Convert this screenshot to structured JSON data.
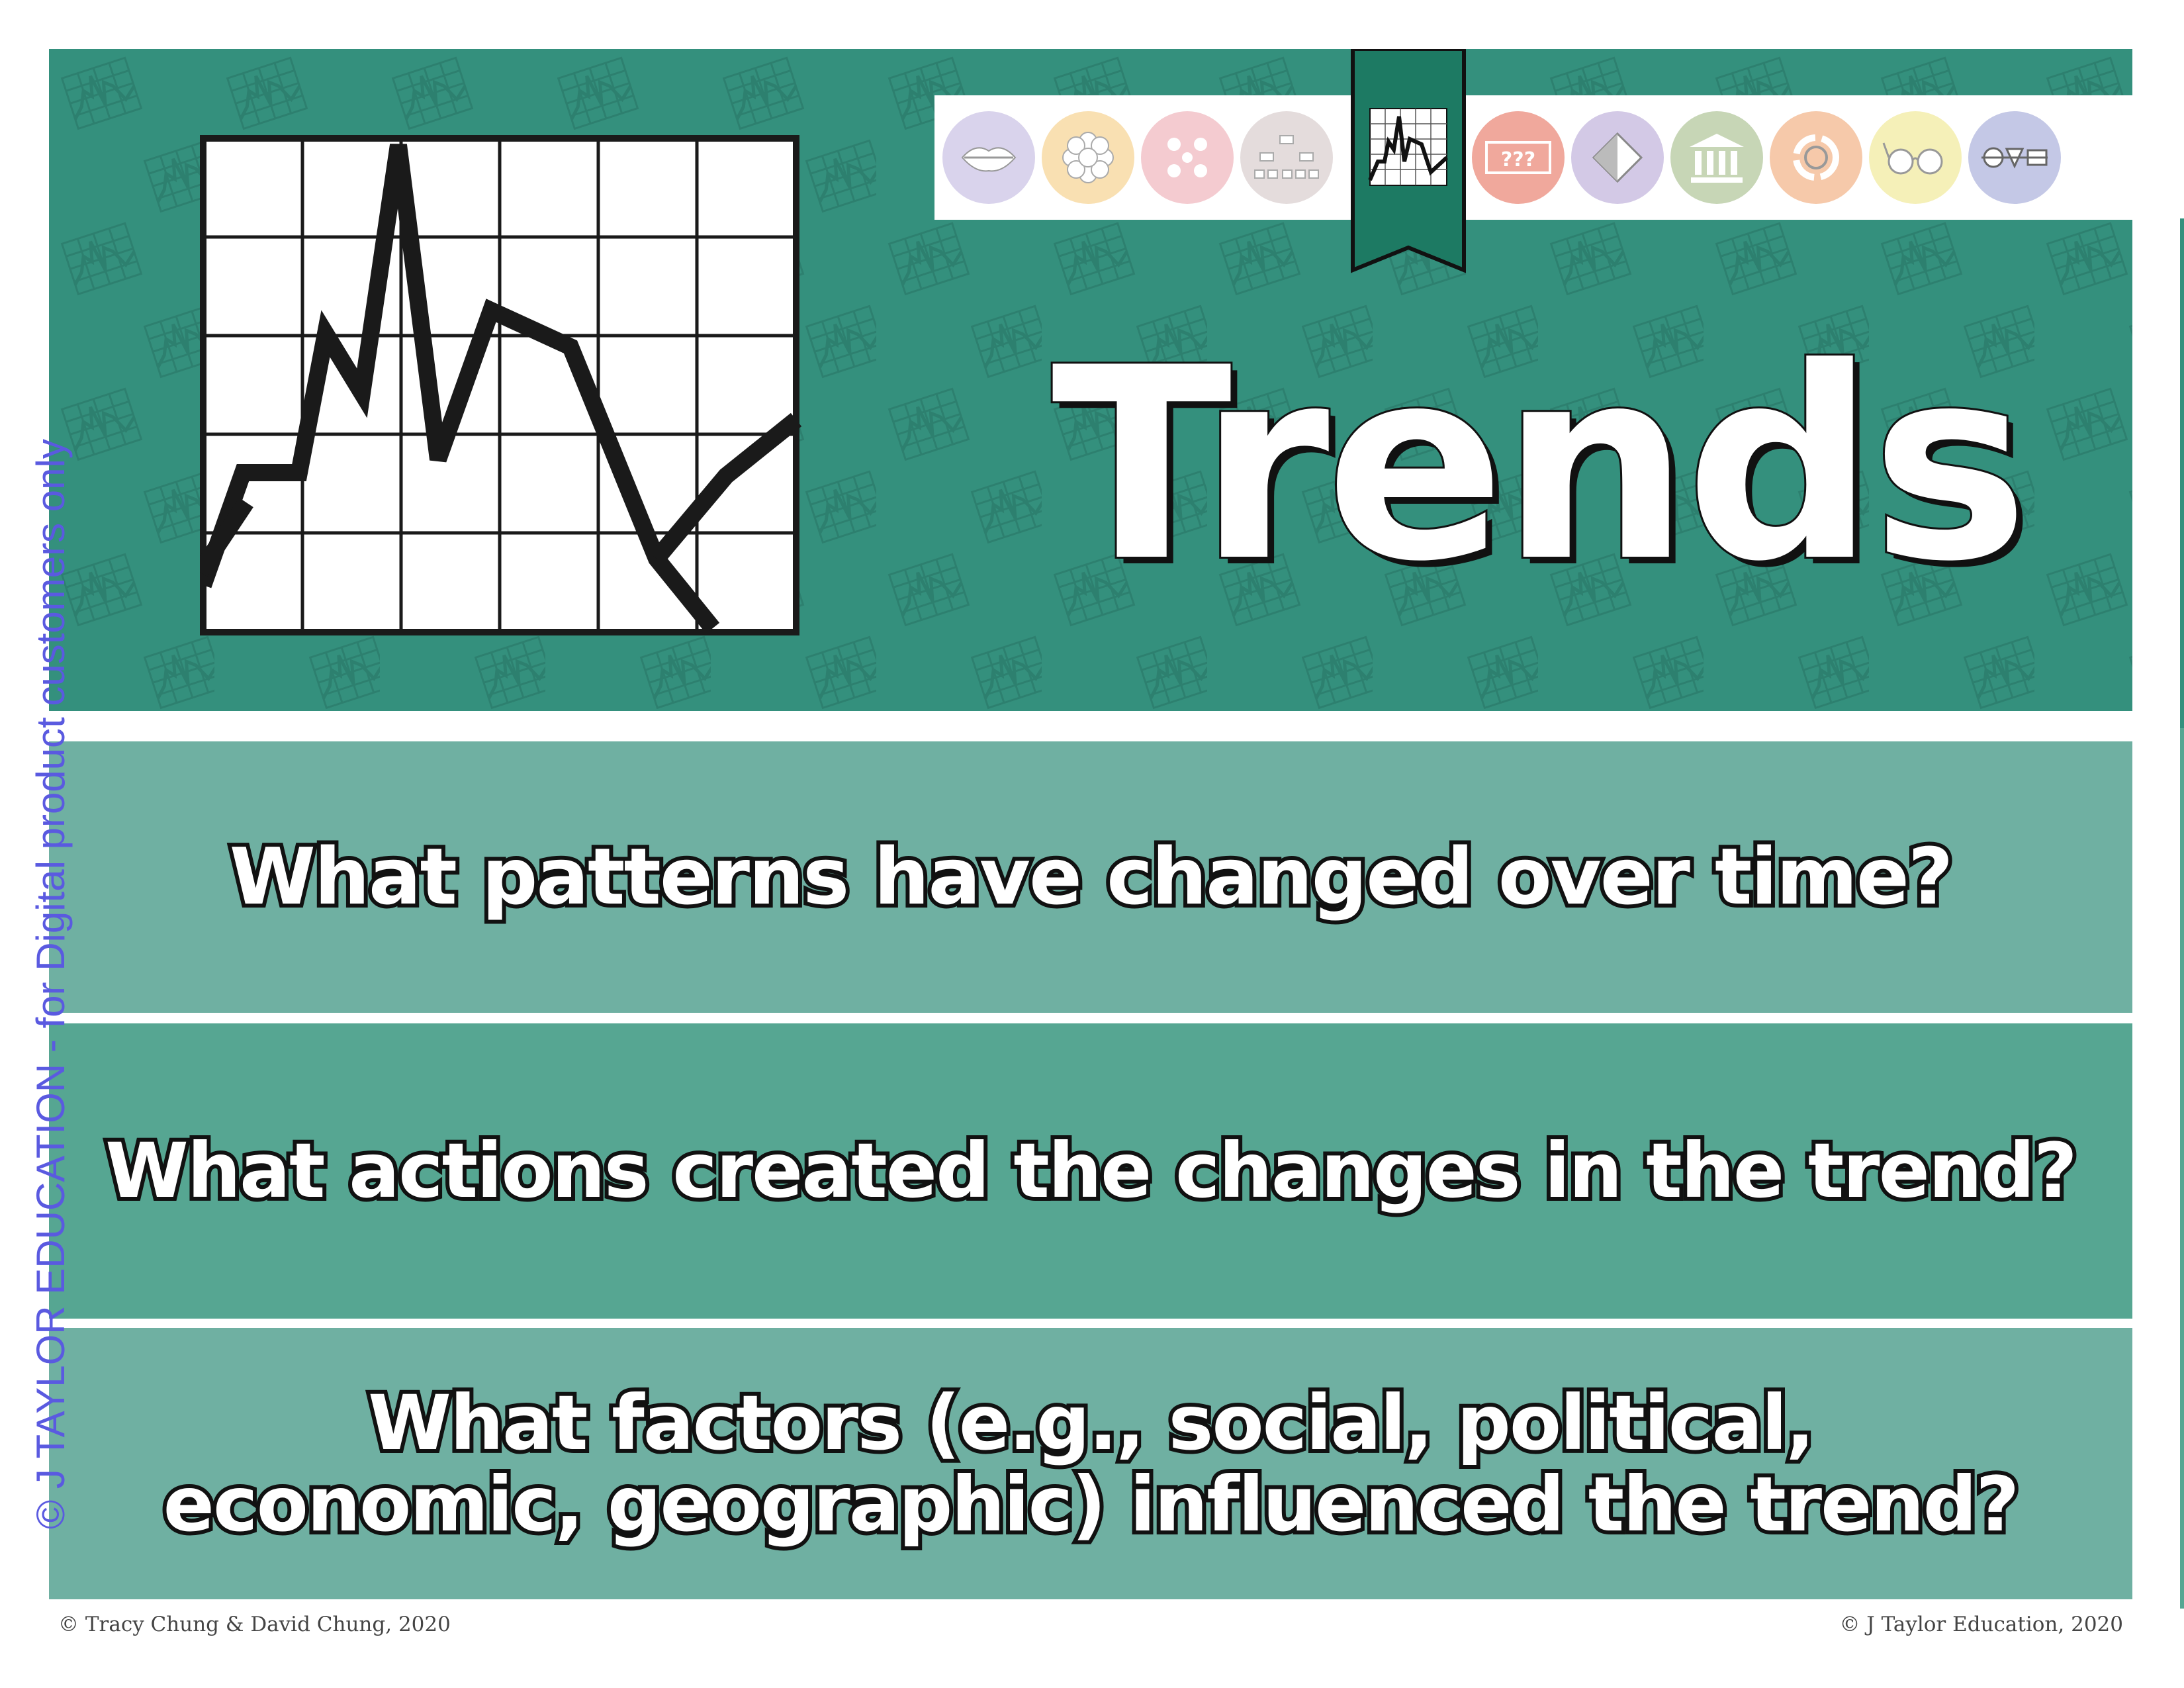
{
  "header": {
    "title": "Trends",
    "background_color": "#34907d",
    "icons": [
      {
        "name": "lips-icon",
        "color": "#d9d3ec"
      },
      {
        "name": "flower-icon",
        "color": "#f9e0b2"
      },
      {
        "name": "network-icon",
        "color": "#f4cbd0"
      },
      {
        "name": "hierarchy-icon",
        "color": "#e4dcdc"
      },
      {
        "name": "trend-graph-icon",
        "color": "#ffffff",
        "selected": true
      },
      {
        "name": "question-marks-icon",
        "color": "#f0a89c"
      },
      {
        "name": "diamond-icon",
        "color": "#d3c9e6"
      },
      {
        "name": "institution-icon",
        "color": "#c7d6b6"
      },
      {
        "name": "cycle-icon",
        "color": "#f6c9aa"
      },
      {
        "name": "glasses-icon",
        "color": "#f5f0b8"
      },
      {
        "name": "shapes-icon",
        "color": "#c4c8e6"
      }
    ]
  },
  "questions": [
    {
      "lines": [
        "What patterns have changed over time?"
      ],
      "color": "#6fb0a2"
    },
    {
      "lines": [
        "What actions created the changes in the trend?"
      ],
      "color": "#56a692"
    },
    {
      "lines": [
        "What factors (e.g., social, political,",
        "economic, geographic) influenced the trend?"
      ],
      "color": "#6fb0a2"
    }
  ],
  "footer": {
    "left": "© Tracy Chung & David Chung, 2020",
    "right": "© J Taylor Education, 2020"
  },
  "watermark": "© J TAYLOR EDUCATION - for Digital product customers only"
}
